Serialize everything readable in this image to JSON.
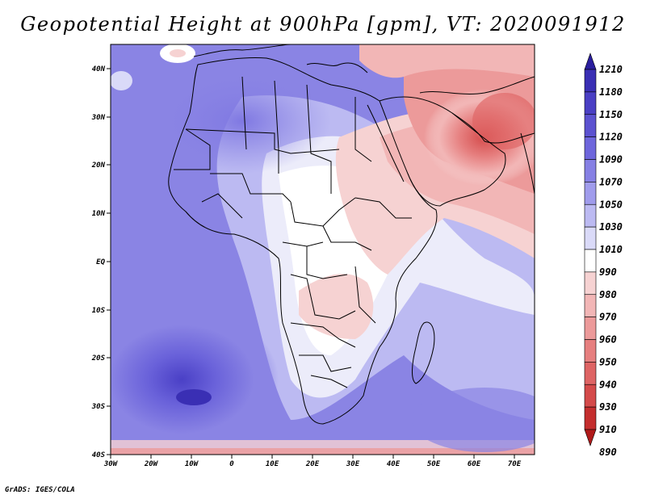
{
  "title": "Geopotential Height at 900hPa [gpm], VT: 2020091912",
  "credit": "GrADS: IGES/COLA",
  "map": {
    "lat_labels": [
      "40N",
      "30N",
      "20N",
      "10N",
      "EQ",
      "10S",
      "20S",
      "30S",
      "40S"
    ],
    "lon_labels": [
      "30W",
      "20W",
      "10W",
      "0",
      "10E",
      "20E",
      "30E",
      "40E",
      "50E",
      "60E",
      "70E"
    ]
  },
  "colorbar": {
    "levels": [
      "1210",
      "1180",
      "1150",
      "1120",
      "1090",
      "1070",
      "1050",
      "1030",
      "1010",
      "990",
      "980",
      "970",
      "960",
      "950",
      "940",
      "930",
      "910",
      "890"
    ],
    "colors": [
      "#2a1e9e",
      "#3a2fb4",
      "#4a3fc4",
      "#5c52d0",
      "#6e66dc",
      "#8680e4",
      "#a09cec",
      "#bcbaf2",
      "#dadaf8",
      "#ffffff",
      "#f6d2d2",
      "#f2b6b6",
      "#ec9a9a",
      "#e67f7f",
      "#de6464",
      "#d44a4a",
      "#c42e2e",
      "#b01a1a"
    ]
  }
}
